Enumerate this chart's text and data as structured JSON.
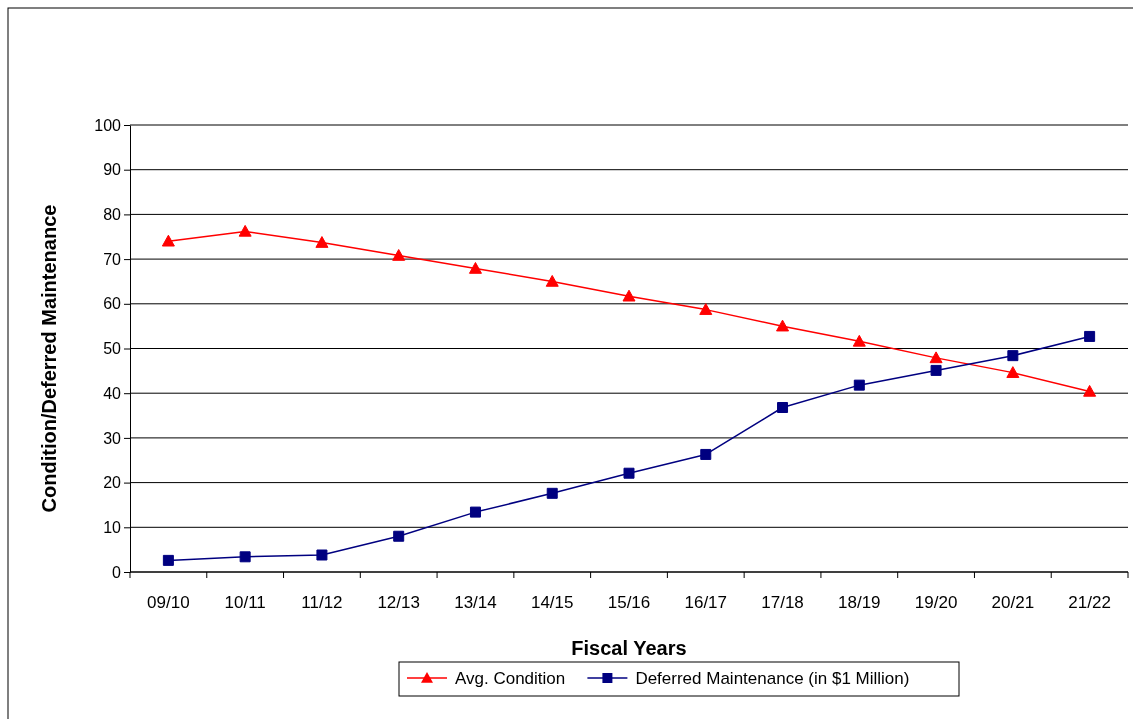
{
  "chart_data": {
    "type": "line",
    "xlabel": "Fiscal Years",
    "ylabel": "Condition/Deferred Maintenance",
    "categories": [
      "09/10",
      "10/11",
      "11/12",
      "12/13",
      "13/14",
      "14/15",
      "15/16",
      "16/17",
      "17/18",
      "18/19",
      "19/20",
      "20/21",
      "21/22"
    ],
    "series": [
      {
        "name": "Avg. Condition",
        "color": "#ff0000",
        "marker": "triangle",
        "values": [
          74,
          76.2,
          73.7,
          70.8,
          67.9,
          65,
          61.7,
          58.7,
          55,
          51.6,
          47.9,
          44.6,
          40.4
        ]
      },
      {
        "name": "Deferred Maintenance (in $1 Million)",
        "color": "#000080",
        "marker": "square",
        "values": [
          2.6,
          3.4,
          3.8,
          8,
          13.4,
          17.6,
          22.1,
          26.3,
          36.8,
          41.8,
          45.1,
          48.4,
          52.7
        ]
      }
    ],
    "ylim": [
      0,
      100
    ],
    "yticks": [
      0,
      10,
      20,
      30,
      40,
      50,
      60,
      70,
      80,
      90,
      100
    ],
    "grid": "y",
    "legend": "bottom"
  }
}
